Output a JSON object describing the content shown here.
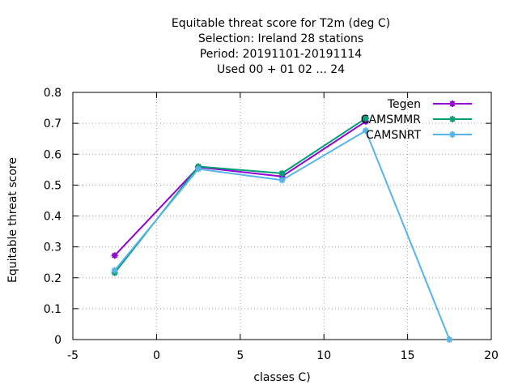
{
  "chart_data": {
    "type": "line",
    "title_lines": [
      "Equitable threat score  for T2m (deg C)",
      "Selection: Ireland     28 stations",
      "Period: 20191101-20191114",
      "Used  00 + 01 02 ... 24"
    ],
    "xlabel": "classes C)",
    "ylabel": "Equitable threat score",
    "xlim": [
      -5,
      20
    ],
    "ylim": [
      0,
      0.8
    ],
    "xticks": [
      -5,
      0,
      5,
      10,
      15,
      20
    ],
    "yticks": [
      0,
      0.1,
      0.2,
      0.3,
      0.4,
      0.5,
      0.6,
      0.7,
      0.8
    ],
    "grid": true,
    "legend_position": "top-right",
    "series": [
      {
        "name": "Tegen",
        "color": "#9400d3",
        "points": [
          [
            -2.5,
            0.272
          ],
          [
            2.5,
            0.558
          ],
          [
            7.5,
            0.528
          ],
          [
            12.5,
            0.706
          ]
        ]
      },
      {
        "name": "CAMSMMR",
        "color": "#009e73",
        "points": [
          [
            -2.5,
            0.216
          ],
          [
            2.5,
            0.56
          ],
          [
            7.5,
            0.538
          ],
          [
            12.5,
            0.716
          ]
        ]
      },
      {
        "name": "CAMSNRT",
        "color": "#56b4e9",
        "points": [
          [
            -2.5,
            0.224
          ],
          [
            2.5,
            0.552
          ],
          [
            7.5,
            0.516
          ],
          [
            12.5,
            0.676
          ],
          [
            17.5,
            0.0
          ]
        ]
      }
    ]
  }
}
